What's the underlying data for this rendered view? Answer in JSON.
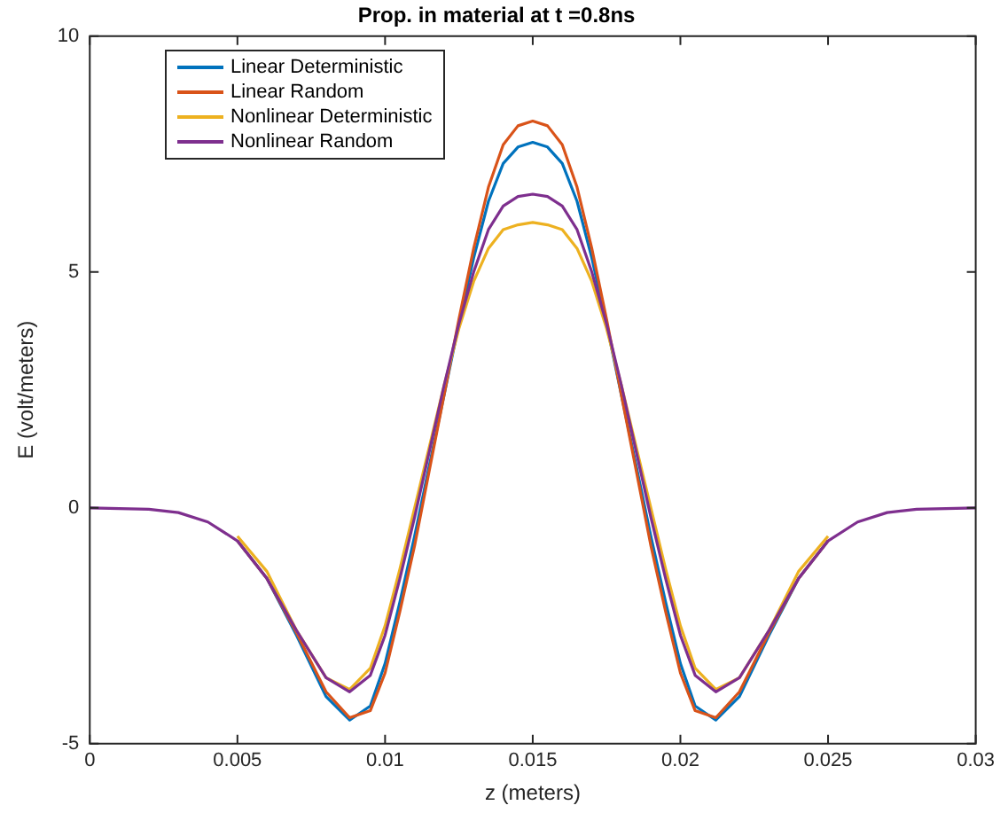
{
  "chart_data": {
    "type": "line",
    "title": "Prop. in material at t =0.8ns",
    "xlabel": "z (meters)",
    "ylabel": "E (volt/meters)",
    "x": [
      0,
      0.002,
      0.003,
      0.004,
      0.005,
      0.006,
      0.007,
      0.008,
      0.0088,
      0.0095,
      0.01,
      0.0105,
      0.011,
      0.0115,
      0.012,
      0.0125,
      0.013,
      0.0135,
      0.014,
      0.0145,
      0.015,
      0.0155,
      0.016,
      0.0165,
      0.017,
      0.0175,
      0.018,
      0.0185,
      0.019,
      0.0195,
      0.02,
      0.0205,
      0.0212,
      0.022,
      0.023,
      0.024,
      0.025,
      0.026,
      0.027,
      0.028,
      0.03
    ],
    "series": [
      {
        "name": "Linear Deterministic",
        "color": "#0072bd",
        "values": [
          null,
          null,
          null,
          null,
          -0.7,
          -1.5,
          -2.7,
          -4.0,
          -4.5,
          -4.2,
          -3.3,
          -2.0,
          -0.6,
          0.9,
          2.4,
          3.9,
          5.3,
          6.5,
          7.3,
          7.65,
          7.75,
          7.65,
          7.3,
          6.5,
          5.3,
          3.9,
          2.4,
          0.9,
          -0.6,
          -2.0,
          -3.3,
          -4.2,
          -4.5,
          -4.0,
          -2.7,
          -1.5,
          -0.7,
          null,
          null,
          null,
          null
        ]
      },
      {
        "name": "Linear Random",
        "color": "#d95319",
        "values": [
          null,
          null,
          null,
          null,
          -0.7,
          -1.5,
          -2.65,
          -3.9,
          -4.45,
          -4.3,
          -3.5,
          -2.2,
          -0.8,
          0.8,
          2.4,
          4.0,
          5.5,
          6.8,
          7.7,
          8.1,
          8.2,
          8.1,
          7.7,
          6.8,
          5.5,
          4.0,
          2.4,
          0.8,
          -0.8,
          -2.2,
          -3.5,
          -4.3,
          -4.45,
          -3.9,
          -2.65,
          -1.5,
          -0.7,
          null,
          null,
          null,
          null
        ]
      },
      {
        "name": "Nonlinear Deterministic",
        "color": "#edb120",
        "values": [
          null,
          null,
          null,
          null,
          -0.6,
          -1.35,
          -2.6,
          -3.6,
          -3.85,
          -3.4,
          -2.5,
          -1.3,
          0.0,
          1.3,
          2.6,
          3.8,
          4.8,
          5.5,
          5.9,
          6.0,
          6.05,
          6.0,
          5.9,
          5.5,
          4.8,
          3.8,
          2.6,
          1.3,
          0.0,
          -1.3,
          -2.5,
          -3.4,
          -3.85,
          -3.6,
          -2.6,
          -1.35,
          -0.6,
          null,
          null,
          null,
          null
        ]
      },
      {
        "name": "Nonlinear Random",
        "color": "#7e2f8e",
        "values": [
          0,
          -0.03,
          -0.1,
          -0.3,
          -0.7,
          -1.5,
          -2.6,
          -3.6,
          -3.9,
          -3.55,
          -2.7,
          -1.5,
          -0.2,
          1.2,
          2.6,
          3.9,
          5.0,
          5.9,
          6.4,
          6.6,
          6.65,
          6.6,
          6.4,
          5.9,
          5.0,
          3.9,
          2.6,
          1.2,
          -0.2,
          -1.5,
          -2.7,
          -3.55,
          -3.9,
          -3.6,
          -2.6,
          -1.5,
          -0.7,
          -0.3,
          -0.1,
          -0.03,
          0
        ]
      }
    ],
    "xlim": [
      0,
      0.03
    ],
    "xticks": [
      0,
      0.005,
      0.01,
      0.015,
      0.02,
      0.025,
      0.03
    ],
    "ylim": [
      -5,
      10
    ],
    "yticks": [
      -5,
      0,
      5,
      10
    ],
    "grid": false,
    "legend": "top left",
    "marker": "none",
    "line_style": "solid"
  }
}
